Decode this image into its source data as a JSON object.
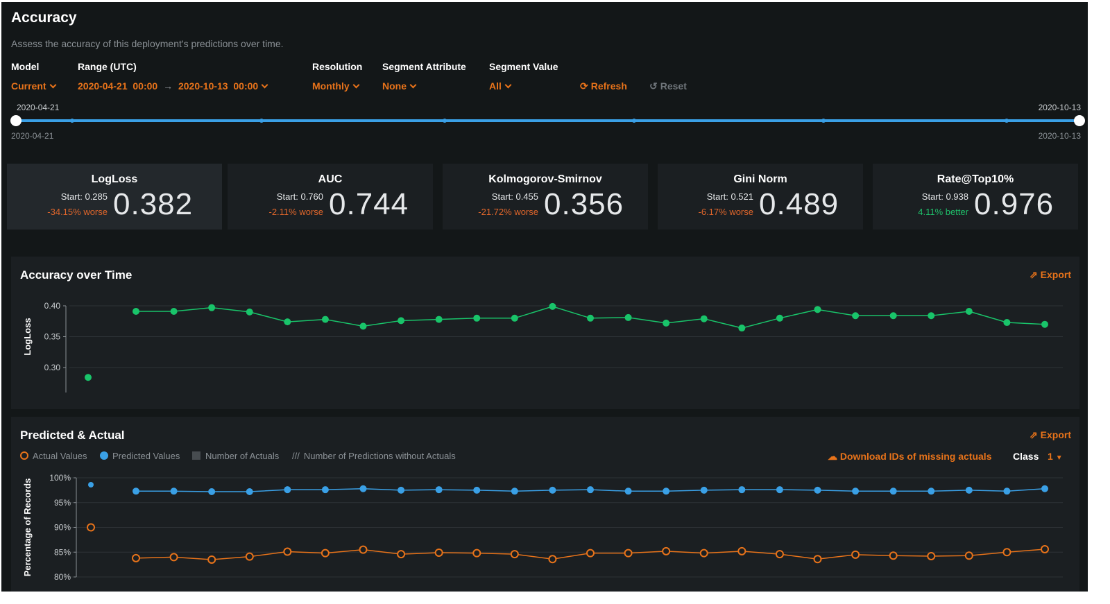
{
  "header": {
    "title": "Accuracy",
    "subtitle": "Assess the accuracy of this deployment's predictions over time."
  },
  "filters": {
    "model": {
      "label": "Model",
      "value": "Current"
    },
    "range": {
      "label": "Range (UTC)",
      "start": "2020-04-21  00:00",
      "arrow": "→",
      "end": "2020-10-13  00:00"
    },
    "resolution": {
      "label": "Resolution",
      "value": "Monthly"
    },
    "segment_attribute": {
      "label": "Segment Attribute",
      "value": "None"
    },
    "segment_value": {
      "label": "Segment Value",
      "value": "All"
    },
    "refresh": "Refresh",
    "reset": "Reset"
  },
  "slider": {
    "start_top": "2020-04-21",
    "start_bottom": "2020-04-21",
    "end_top": "2020-10-13",
    "end_bottom": "2020-10-13"
  },
  "metrics": [
    {
      "name": "LogLoss",
      "start": "Start: 0.285",
      "change": "-34.15% worse",
      "value": "0.382",
      "trend": "worse"
    },
    {
      "name": "AUC",
      "start": "Start: 0.760",
      "change": "-2.11% worse",
      "value": "0.744",
      "trend": "worse"
    },
    {
      "name": "Kolmogorov-Smirnov",
      "start": "Start: 0.455",
      "change": "-21.72% worse",
      "value": "0.356",
      "trend": "worse"
    },
    {
      "name": "Gini Norm",
      "start": "Start: 0.521",
      "change": "-6.17% worse",
      "value": "0.489",
      "trend": "worse"
    },
    {
      "name": "Rate@Top10%",
      "start": "Start: 0.938",
      "change": "4.11% better",
      "value": "0.976",
      "trend": "better"
    }
  ],
  "colors": {
    "accent": "#e8731a",
    "worse": "#e0662b",
    "better": "#1fbf6a",
    "green": "#19c46a",
    "blue": "#3aa0e6",
    "orange": "#e8731a"
  },
  "accuracy_panel": {
    "title": "Accuracy over Time",
    "export": "Export"
  },
  "pa_panel": {
    "title": "Predicted & Actual",
    "export": "Export",
    "download": "Download IDs of missing actuals",
    "class_label": "Class",
    "class_value": "1",
    "legend": [
      "Actual Values",
      "Predicted Values",
      "Number of Actuals",
      "Number of Predictions without Actuals"
    ]
  },
  "chart_data": [
    {
      "type": "line",
      "ylabel": "LogLoss",
      "yticks": [
        "0.40",
        "0.35",
        "0.30"
      ],
      "ylim": [
        0.26,
        0.41
      ],
      "reference_point": 0.284,
      "series": [
        {
          "name": "LogLoss",
          "values": [
            0.391,
            0.391,
            0.397,
            0.39,
            0.374,
            0.378,
            0.367,
            0.376,
            0.378,
            0.38,
            0.38,
            0.399,
            0.38,
            0.381,
            0.372,
            0.379,
            0.364,
            0.38,
            0.394,
            0.384,
            0.384,
            0.384,
            0.391,
            0.373,
            0.37
          ]
        }
      ]
    },
    {
      "type": "line",
      "ylabel": "Percentage of Records",
      "yticks": [
        "100%",
        "95%",
        "90%",
        "85%",
        "80%"
      ],
      "ylim": [
        80,
        100
      ],
      "reference": {
        "predicted": 98.6,
        "actual": 90.0
      },
      "series": [
        {
          "name": "Predicted Values",
          "values": [
            97.3,
            97.3,
            97.2,
            97.2,
            97.6,
            97.6,
            97.8,
            97.5,
            97.6,
            97.5,
            97.3,
            97.5,
            97.6,
            97.3,
            97.3,
            97.5,
            97.6,
            97.6,
            97.5,
            97.3,
            97.3,
            97.3,
            97.5,
            97.3,
            97.8
          ]
        },
        {
          "name": "Actual Values",
          "values": [
            83.8,
            84.0,
            83.5,
            84.1,
            85.1,
            84.8,
            85.5,
            84.6,
            84.9,
            84.8,
            84.6,
            83.6,
            84.8,
            84.8,
            85.2,
            84.8,
            85.2,
            84.6,
            83.6,
            84.5,
            84.3,
            84.2,
            84.3,
            85.0,
            85.6
          ]
        }
      ]
    }
  ]
}
